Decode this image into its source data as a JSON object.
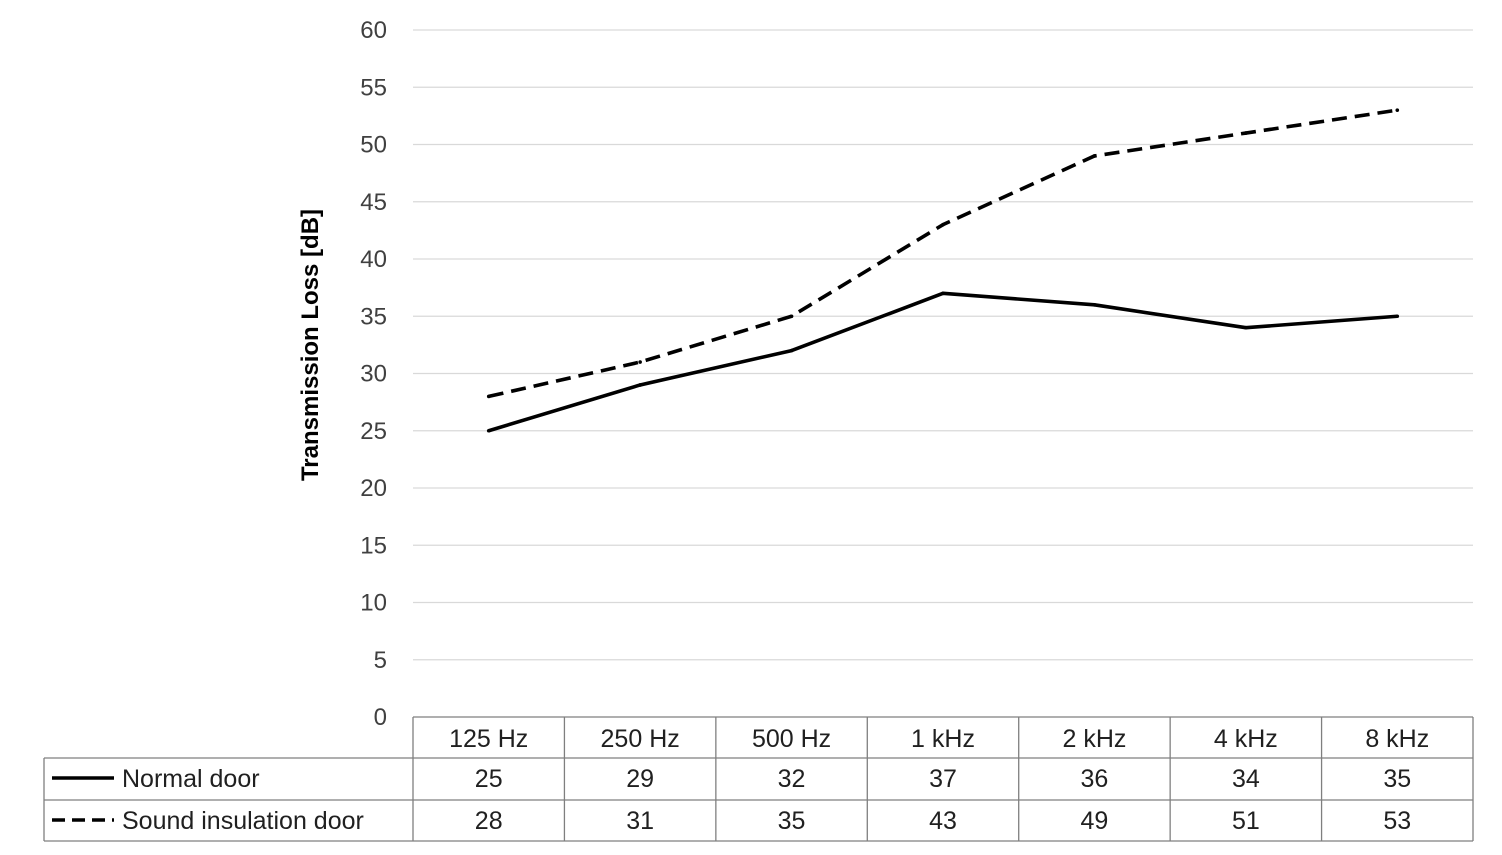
{
  "chart_data": {
    "type": "line",
    "title": "",
    "xlabel": "",
    "ylabel": "Transmission Loss [dB]",
    "ylim": [
      0,
      60
    ],
    "yticks": [
      0,
      5,
      10,
      15,
      20,
      25,
      30,
      35,
      40,
      45,
      50,
      55,
      60
    ],
    "grid": true,
    "legend": "data-table-bottom",
    "categories": [
      "125 Hz",
      "250 Hz",
      "500 Hz",
      "1 kHz",
      "2 kHz",
      "4 kHz",
      "8 kHz"
    ],
    "series": [
      {
        "name": "Normal door",
        "values": [
          25,
          29,
          32,
          37,
          36,
          34,
          35
        ],
        "color": "#000000",
        "dash": "solid"
      },
      {
        "name": "Sound insulation door",
        "values": [
          28,
          31,
          35,
          43,
          49,
          51,
          53
        ],
        "color": "#000000",
        "dash": "dashed"
      }
    ]
  }
}
